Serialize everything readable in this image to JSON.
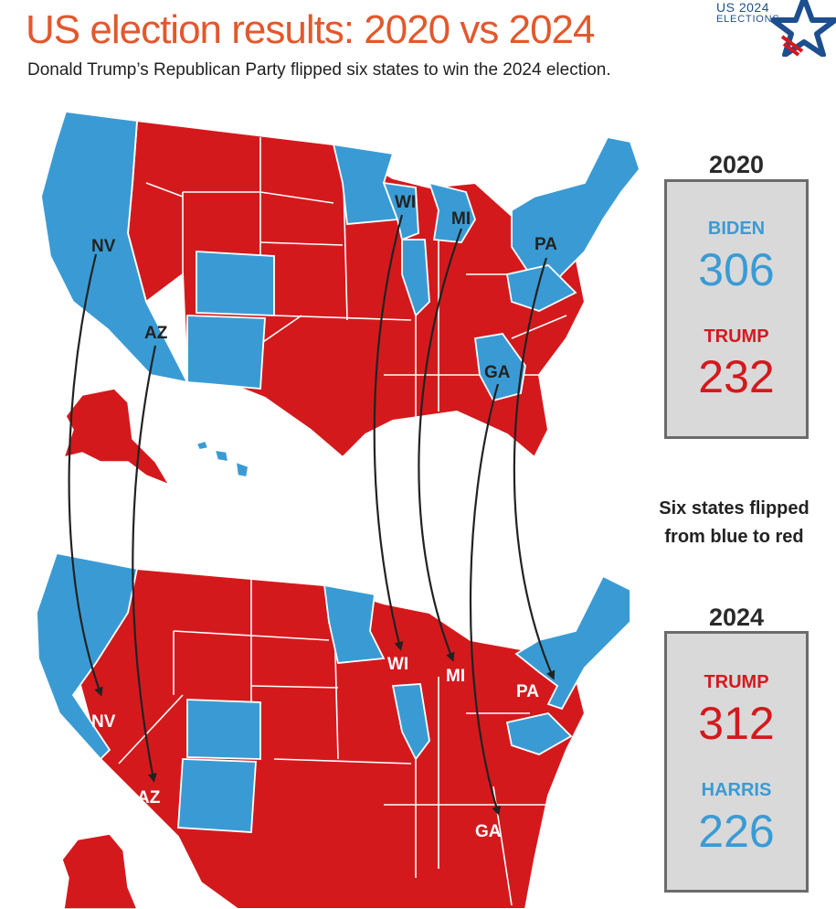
{
  "header": {
    "title": "US election results: 2020 vs 2024",
    "subtitle": "Donald Trump’s Republican Party flipped six states to win the 2024 election."
  },
  "logo": {
    "line1": "US 2024",
    "line2": "ELECTIONS"
  },
  "colors": {
    "blue": "#3a9bd4",
    "red": "#d4191d",
    "title": "#e2582d",
    "panel": "#d9d9d9"
  },
  "results_2020": {
    "year": "2020",
    "first": {
      "name": "BIDEN",
      "votes": "306",
      "color": "#3a9bd4"
    },
    "second": {
      "name": "TRUMP",
      "votes": "232",
      "color": "#d4191d"
    }
  },
  "results_2024": {
    "year": "2024",
    "first": {
      "name": "TRUMP",
      "votes": "312",
      "color": "#d4191d"
    },
    "second": {
      "name": "HARRIS",
      "votes": "226",
      "color": "#3a9bd4"
    }
  },
  "note": {
    "line1": "Six states flipped",
    "line2": "from blue to red"
  },
  "flipped_states": [
    "NV",
    "AZ",
    "WI",
    "MI",
    "PA",
    "GA"
  ],
  "map_labels_2020": {
    "NV": "NV",
    "AZ": "AZ",
    "WI": "WI",
    "MI": "MI",
    "PA": "PA",
    "GA": "GA"
  },
  "map_labels_2024": {
    "NV": "NV",
    "AZ": "AZ",
    "WI": "WI",
    "MI": "MI",
    "PA": "PA",
    "GA": "GA"
  }
}
